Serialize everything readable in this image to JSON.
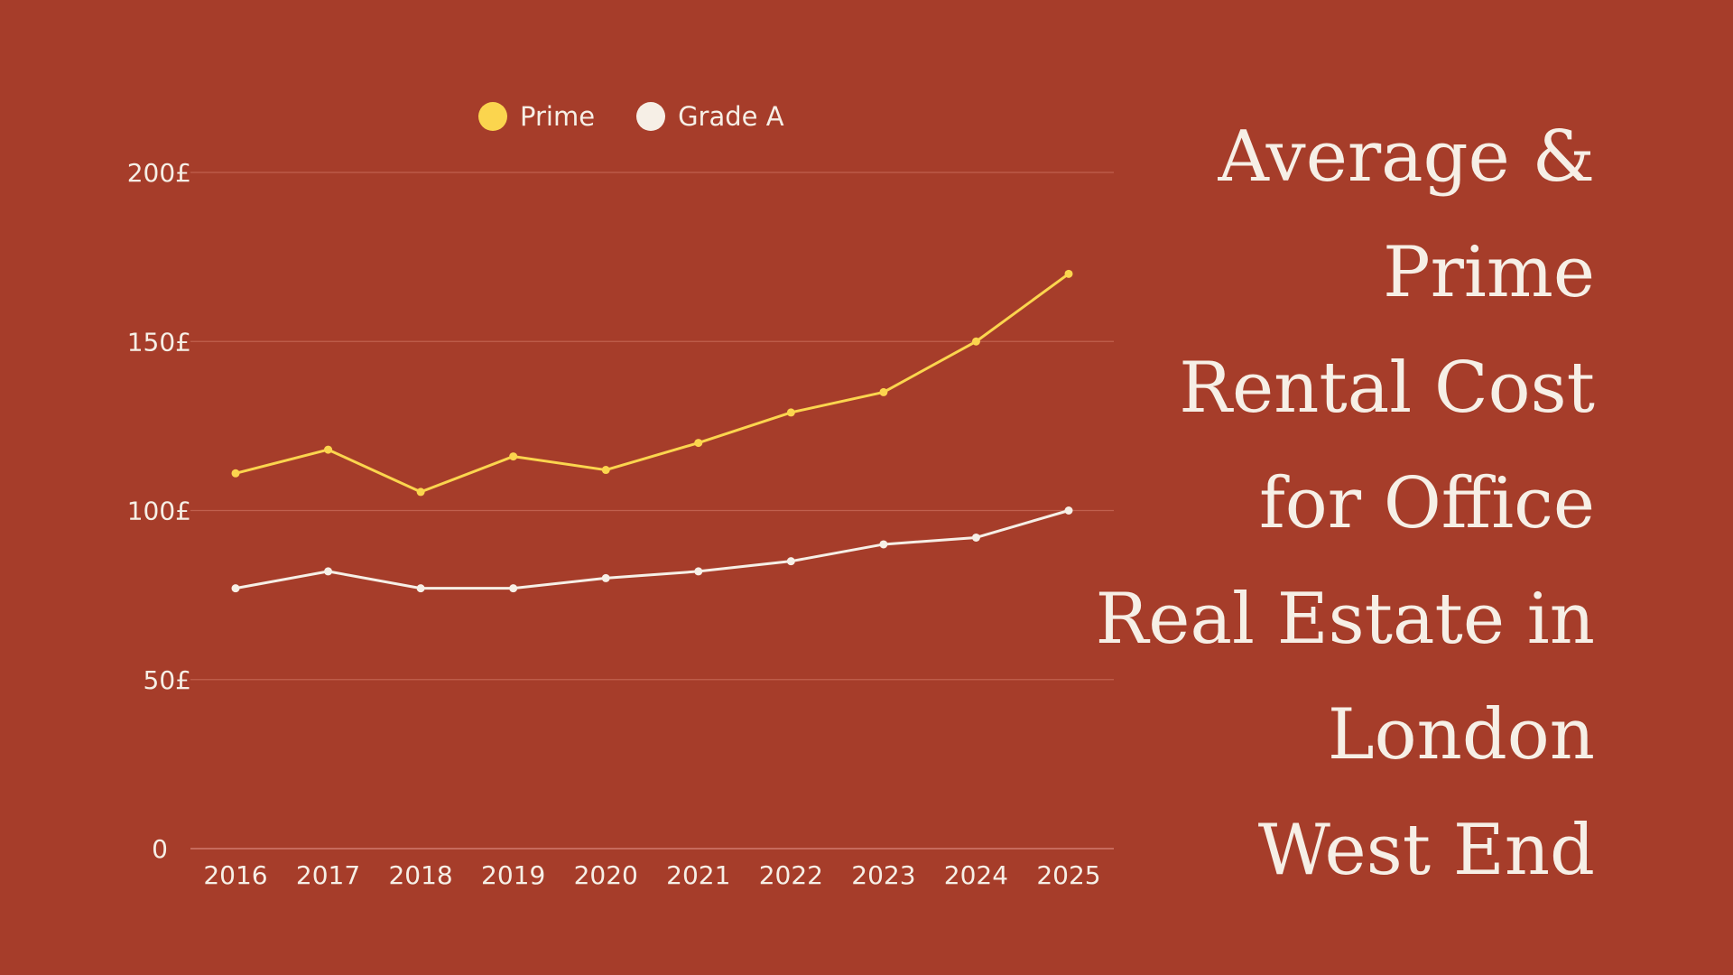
{
  "title_lines": [
    "Average &",
    "Prime",
    "Rental Cost",
    "for Office",
    "Real Estate in",
    "London",
    "West End"
  ],
  "chart_data": {
    "type": "line",
    "title": "Average & Prime Rental Cost for Office Real Estate in London West End",
    "x": [
      "2016",
      "2017",
      "2018",
      "2019",
      "2020",
      "2021",
      "2022",
      "2023",
      "2024",
      "2025"
    ],
    "series": [
      {
        "name": "Prime",
        "color": "#fbd54e",
        "values": [
          111,
          118,
          105.5,
          116,
          112,
          120,
          129,
          135,
          150,
          170
        ]
      },
      {
        "name": "Grade A",
        "color": "#f6efe6",
        "values": [
          77,
          82,
          77,
          77,
          80,
          82,
          85,
          90,
          92,
          100
        ]
      }
    ],
    "yticks": [
      "0",
      "50£",
      "100£",
      "150£",
      "200£"
    ],
    "ytick_values": [
      0,
      50,
      100,
      150,
      200
    ],
    "ylim": [
      0,
      200
    ],
    "grid": true,
    "legend": "top-center",
    "background": "#a63d2a"
  }
}
